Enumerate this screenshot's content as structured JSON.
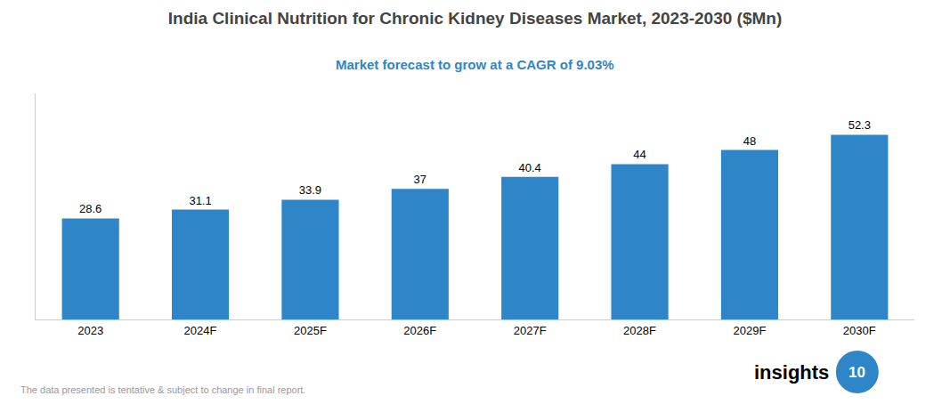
{
  "chart_data": {
    "type": "bar",
    "title": "India Clinical Nutrition for Chronic Kidney Diseases Market, 2023-2030 ($Mn)",
    "subtitle": "Market forecast to grow at a CAGR of 9.03%",
    "annotations": [
      "The data presented is tentative & subject to change in final report.",
      "insights",
      "10"
    ],
    "categories": [
      "2023",
      "2024F",
      "2025F",
      "2026F",
      "2027F",
      "2028F",
      "2029F",
      "2030F"
    ],
    "values": [
      28.6,
      31.1,
      33.9,
      37,
      40.4,
      44,
      48,
      52.3
    ],
    "color": "#2E86C8",
    "ylim": [
      0,
      64
    ],
    "grid": false,
    "data_labels": true,
    "tick_labels": "x"
  }
}
